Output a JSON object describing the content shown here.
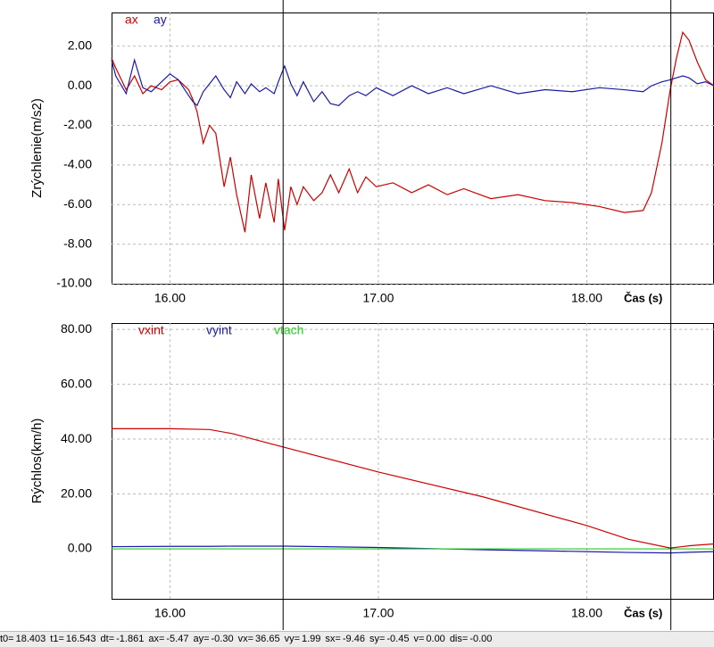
{
  "chart_data": [
    {
      "type": "line",
      "ylabel": "Zrýchlenie(m/s2)",
      "xlabel": "Čas (s)",
      "xlim": [
        15.72,
        18.61
      ],
      "ylim": [
        -10,
        3.7
      ],
      "xticks": [
        {
          "value": 16,
          "label": "16.00"
        },
        {
          "value": 17,
          "label": "17.00"
        },
        {
          "value": 18,
          "label": "18.00"
        }
      ],
      "yticks": [
        {
          "value": 2,
          "label": "2.00"
        },
        {
          "value": 0,
          "label": "0.00"
        },
        {
          "value": -2,
          "label": "-2.00"
        },
        {
          "value": -4,
          "label": "-4.00"
        },
        {
          "value": -6,
          "label": "-6.00"
        },
        {
          "value": -8,
          "label": "-8.00"
        },
        {
          "value": -10,
          "label": "-10.00"
        }
      ],
      "grid": true,
      "x": [
        15.72,
        15.74,
        15.79,
        15.83,
        15.87,
        15.91,
        15.96,
        16.0,
        16.04,
        16.09,
        16.11,
        16.13,
        16.16,
        16.19,
        16.22,
        16.26,
        16.29,
        16.32,
        16.36,
        16.39,
        16.43,
        16.46,
        16.5,
        16.52,
        16.55,
        16.58,
        16.61,
        16.64,
        16.69,
        16.73,
        16.77,
        16.81,
        16.86,
        16.9,
        16.94,
        16.99,
        17.07,
        17.16,
        17.24,
        17.33,
        17.41,
        17.54,
        17.67,
        17.8,
        17.93,
        18.06,
        18.18,
        18.27,
        18.31,
        18.36,
        18.4,
        18.43,
        18.46,
        18.49,
        18.53,
        18.57,
        18.61
      ],
      "series": [
        {
          "name": "ax",
          "color": "#cc0000",
          "values": [
            1.4,
            0.9,
            -0.2,
            0.5,
            -0.4,
            0,
            -0.2,
            0.2,
            0.3,
            -0.2,
            -0.7,
            -1.3,
            -2.9,
            -2.0,
            -2.4,
            -5.1,
            -3.6,
            -5.5,
            -7.4,
            -4.5,
            -6.7,
            -4.9,
            -6.9,
            -4.7,
            -7.3,
            -5.1,
            -6.0,
            -5.1,
            -5.8,
            -5.4,
            -4.5,
            -5.4,
            -4.2,
            -5.4,
            -4.6,
            -5.1,
            -4.9,
            -5.4,
            -5.0,
            -5.5,
            -5.2,
            -5.7,
            -5.5,
            -5.8,
            -5.9,
            -6.1,
            -6.4,
            -6.3,
            -5.4,
            -2.9,
            -0.2,
            1.4,
            2.7,
            2.3,
            1.2,
            0.3,
            0.0
          ]
        },
        {
          "name": "ay",
          "color": "#1a1aa6",
          "values": [
            1.3,
            0.5,
            -0.4,
            1.3,
            -0.1,
            -0.3,
            0.2,
            0.6,
            0.3,
            -0.5,
            -0.8,
            -1.0,
            -0.3,
            0.1,
            0.5,
            -0.2,
            -0.6,
            0.2,
            -0.4,
            0.1,
            -0.3,
            -0.1,
            -0.4,
            0.2,
            1.0,
            0.1,
            -0.5,
            0.2,
            -0.8,
            -0.3,
            -0.9,
            -1.0,
            -0.5,
            -0.3,
            -0.5,
            -0.1,
            -0.5,
            0.0,
            -0.4,
            -0.1,
            -0.4,
            0.0,
            -0.4,
            -0.2,
            -0.3,
            -0.1,
            -0.2,
            -0.3,
            0.0,
            0.2,
            0.3,
            0.4,
            0.5,
            0.4,
            0.1,
            0.2,
            0.0
          ]
        }
      ]
    },
    {
      "type": "line",
      "ylabel": "Rýchlos(km/h)",
      "xlabel": "Čas (s)",
      "xlim": [
        15.72,
        18.61
      ],
      "ylim": [
        -18.2,
        82.3
      ],
      "xticks": [
        {
          "value": 16,
          "label": "16.00"
        },
        {
          "value": 17,
          "label": "17.00"
        },
        {
          "value": 18,
          "label": "18.00"
        }
      ],
      "yticks": [
        {
          "value": 80,
          "label": "80.00"
        },
        {
          "value": 60,
          "label": "60.00"
        },
        {
          "value": 40,
          "label": "40.00"
        },
        {
          "value": 20,
          "label": "20.00"
        },
        {
          "value": 0,
          "label": "0.00"
        }
      ],
      "grid": true,
      "x": [
        15.72,
        16.0,
        16.19,
        16.3,
        16.55,
        17.0,
        17.5,
        18.0,
        18.2,
        18.4,
        18.5,
        18.61
      ],
      "series": [
        {
          "name": "vxint",
          "color": "#cc0000",
          "values": [
            43.8,
            43.8,
            43.5,
            42,
            37,
            28,
            19,
            8.5,
            3.5,
            0.3,
            1.2,
            1.8
          ]
        },
        {
          "name": "vyint",
          "color": "#1a1aa6",
          "values": [
            0.8,
            0.9,
            0.9,
            1,
            1,
            0.5,
            -0.3,
            -1,
            -1.3,
            -1.5,
            -1.2,
            -1
          ]
        },
        {
          "name": "vtach",
          "color": "#22cc22",
          "values": [
            0,
            0,
            0,
            0,
            0,
            0,
            0,
            0,
            0,
            0,
            0,
            0
          ]
        }
      ]
    }
  ],
  "status": {
    "items": [
      {
        "label": "t0=",
        "value": 18.403
      },
      {
        "label": "t1=",
        "value": 16.543
      },
      {
        "label": "dt=",
        "value": -1.861
      },
      {
        "label": "ax=",
        "value": -5.47
      },
      {
        "label": "ay=",
        "value": "-0.30"
      },
      {
        "label": "vx=",
        "value": 36.65
      },
      {
        "label": "vy=",
        "value": 1.99
      },
      {
        "label": "sx=",
        "value": -9.46
      },
      {
        "label": "sy=",
        "value": -0.45
      },
      {
        "label": "v=",
        "value": "0.00"
      },
      {
        "label": "dis=",
        "value": "-0.00"
      }
    ]
  }
}
